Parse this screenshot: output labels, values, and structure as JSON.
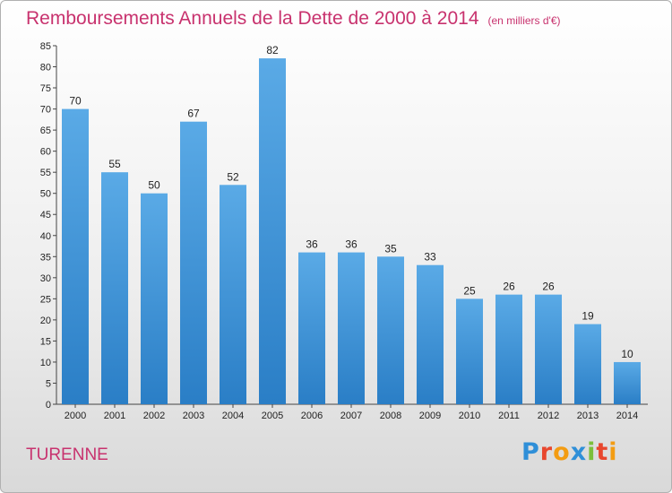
{
  "chart_data": {
    "type": "bar",
    "title": "Remboursements Annuels de la Dette de 2000 à 2014",
    "unit": "(en milliers d'€)",
    "categories": [
      "2000",
      "2001",
      "2002",
      "2003",
      "2004",
      "2005",
      "2006",
      "2007",
      "2008",
      "2009",
      "2010",
      "2011",
      "2012",
      "2013",
      "2014"
    ],
    "values": [
      70,
      55,
      50,
      67,
      52,
      82,
      36,
      36,
      35,
      33,
      25,
      26,
      26,
      19,
      10
    ],
    "xlabel": "",
    "ylabel": "",
    "ylim": [
      0,
      85
    ],
    "yticks": [
      0,
      5,
      10,
      15,
      20,
      25,
      30,
      35,
      40,
      45,
      50,
      55,
      60,
      65,
      70,
      75,
      80,
      85
    ],
    "grid": false,
    "bar_color_top": "#5aaae6",
    "bar_color_bottom": "#2a7ec6",
    "label_color": "#c8326e"
  },
  "footer": {
    "commune": "TURENNE",
    "logo_letters": [
      {
        "ch": "P",
        "color": "#2f8fd8"
      },
      {
        "ch": "r",
        "color": "#e8472e"
      },
      {
        "ch": "o",
        "color": "#f39c12"
      },
      {
        "ch": "x",
        "color": "#2f8fd8"
      },
      {
        "ch": "i",
        "color": "#7cbf3a"
      },
      {
        "ch": "t",
        "color": "#e8472e"
      },
      {
        "ch": "i",
        "color": "#f39c12"
      }
    ]
  }
}
